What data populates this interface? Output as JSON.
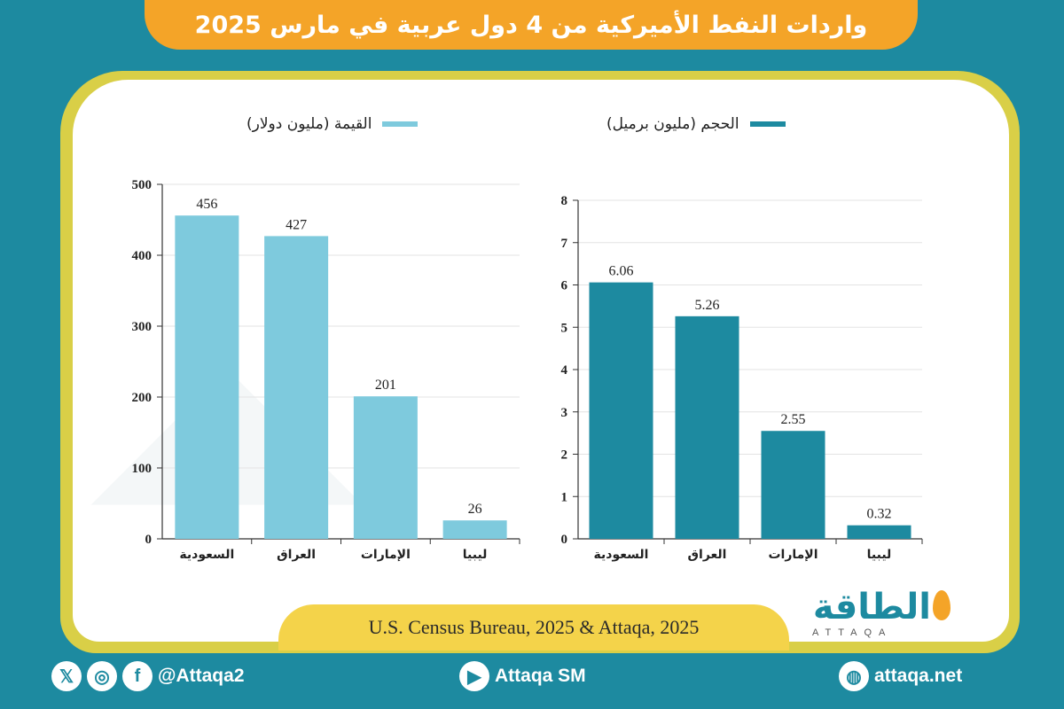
{
  "title": "واردات النفط الأميركية من 4 دول عربية في مارس 2025",
  "source": "U.S. Census Bureau, 2025 & Attaqa, 2025",
  "logo": {
    "arabic": "الطاقة",
    "latin": "ATTAQA"
  },
  "footer": {
    "social_handle": "@Attaqa2",
    "youtube": "Attaqa SM",
    "website": "attaqa.net"
  },
  "colors": {
    "value_bar": "#7ecadd",
    "volume_bar": "#1d8aa0",
    "title_bg": "#f4a428",
    "source_bg": "#f4d34a",
    "frame": "#d9cf47"
  },
  "chart_data": [
    {
      "type": "bar",
      "legend": "القيمة (مليون دولار)",
      "categories": [
        "السعودية",
        "العراق",
        "الإمارات",
        "ليبيا"
      ],
      "values": [
        456,
        427,
        201,
        26
      ],
      "ylim": [
        0,
        500
      ],
      "yticks": [
        0,
        100,
        200,
        300,
        400,
        500
      ],
      "color": "#7ecadd"
    },
    {
      "type": "bar",
      "legend": "الحجم (مليون برميل)",
      "categories": [
        "السعودية",
        "العراق",
        "الإمارات",
        "ليبيا"
      ],
      "values": [
        6.06,
        5.26,
        2.55,
        0.32
      ],
      "ylim": [
        0,
        8
      ],
      "yticks": [
        0,
        1,
        2,
        3,
        4,
        5,
        6,
        7,
        8
      ],
      "color": "#1d8aa0"
    }
  ]
}
